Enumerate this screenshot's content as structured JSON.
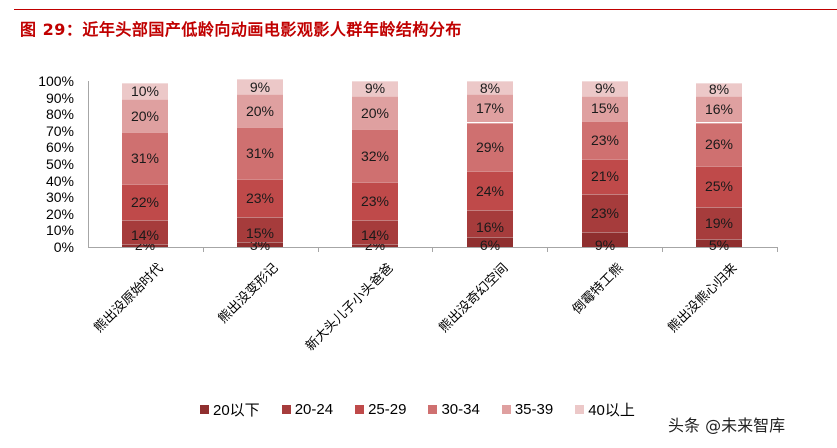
{
  "header": {
    "title": "图 29：近年头部国产低龄向动画电影观影人群年龄结构分布"
  },
  "watermark": "头条 @未来智库",
  "colors": {
    "title": "#c00000",
    "series": [
      "#8f2f2f",
      "#a63c3c",
      "#bf4a4a",
      "#cf7070",
      "#dfa0a0",
      "#ecc8c8"
    ]
  },
  "chart_data": {
    "type": "bar",
    "stacked": true,
    "percent": true,
    "title": "图 29：近年头部国产低龄向动画电影观影人群年龄结构分布",
    "xlabel": "",
    "ylabel": "",
    "ylim": [
      0,
      100
    ],
    "yticks": [
      "0%",
      "10%",
      "20%",
      "30%",
      "40%",
      "50%",
      "60%",
      "70%",
      "80%",
      "90%",
      "100%"
    ],
    "categories": [
      "熊出没原始时代",
      "熊出没变形记",
      "新大头儿子小头爸爸",
      "熊出没奇幻空间",
      "倒霉特工熊",
      "熊出没熊心归来"
    ],
    "series": [
      {
        "name": "20以下",
        "values": [
          2,
          3,
          2,
          6,
          9,
          5
        ]
      },
      {
        "name": "20-24",
        "values": [
          14,
          15,
          14,
          16,
          23,
          19
        ]
      },
      {
        "name": "25-29",
        "values": [
          22,
          23,
          23,
          24,
          21,
          25
        ]
      },
      {
        "name": "30-34",
        "values": [
          31,
          31,
          32,
          29,
          23,
          26
        ]
      },
      {
        "name": "35-39",
        "values": [
          20,
          20,
          20,
          17,
          15,
          16
        ]
      },
      {
        "name": "40以上",
        "values": [
          10,
          9,
          9,
          8,
          9,
          8
        ]
      }
    ],
    "legend_position": "bottom",
    "grid": false,
    "data_labels": true
  }
}
